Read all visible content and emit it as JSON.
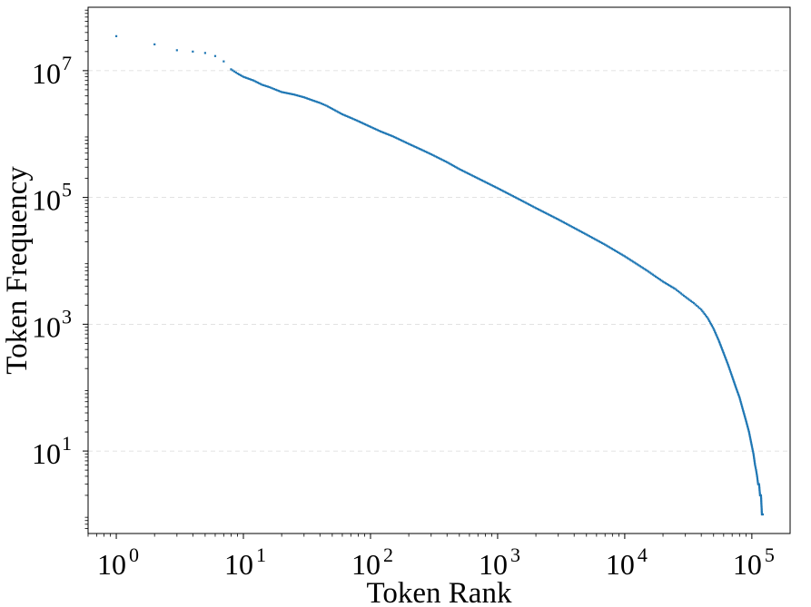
{
  "chart_data": {
    "type": "scatter",
    "xlabel": "Token Rank",
    "ylabel": "Token Frequency",
    "x_scale": "log",
    "y_scale": "log",
    "xlim": [
      0.6,
      200000
    ],
    "ylim": [
      0.5,
      100000000
    ],
    "x_ticks": [
      {
        "base": "10",
        "exp": "0",
        "value": 1
      },
      {
        "base": "10",
        "exp": "1",
        "value": 10
      },
      {
        "base": "10",
        "exp": "2",
        "value": 100
      },
      {
        "base": "10",
        "exp": "3",
        "value": 1000
      },
      {
        "base": "10",
        "exp": "4",
        "value": 10000
      },
      {
        "base": "10",
        "exp": "5",
        "value": 100000
      }
    ],
    "y_ticks": [
      {
        "base": "10",
        "exp": "1",
        "value": 10
      },
      {
        "base": "10",
        "exp": "3",
        "value": 1000
      },
      {
        "base": "10",
        "exp": "5",
        "value": 100000
      },
      {
        "base": "10",
        "exp": "7",
        "value": 10000000
      }
    ],
    "grid": {
      "x": false,
      "y": true,
      "style": "dashed"
    },
    "marker_color": "#1f77b4",
    "series": [
      {
        "x": [
          1,
          2,
          3,
          4,
          5,
          6,
          7,
          8,
          9,
          10,
          12,
          14,
          16,
          18,
          20,
          25,
          30,
          35,
          40,
          45,
          50,
          60,
          70,
          80,
          100,
          120,
          150,
          200,
          250,
          300,
          400,
          500,
          700,
          1000,
          1500,
          2000,
          3000,
          5000,
          7000,
          10000,
          15000,
          20000,
          25000,
          30000,
          35000,
          40000,
          45000,
          50000,
          55000,
          60000,
          65000,
          70000,
          75000,
          80000,
          85000,
          90000,
          95000,
          100000,
          103000,
          106000,
          108000,
          110000,
          112000,
          114000,
          116000,
          118000,
          120000,
          122000
        ],
        "y": [
          35000000,
          26000000,
          21000000,
          20000000,
          19000000,
          17000000,
          14000000,
          10500000,
          9000000,
          8000000,
          7000000,
          6000000,
          5500000,
          5000000,
          4600000,
          4200000,
          3800000,
          3400000,
          3100000,
          2800000,
          2500000,
          2050000,
          1800000,
          1600000,
          1300000,
          1100000,
          920000,
          700000,
          570000,
          480000,
          360000,
          280000,
          200000,
          140000,
          92000,
          68000,
          45000,
          26000,
          18000,
          11800,
          7000,
          4700,
          3600,
          2700,
          2150,
          1700,
          1250,
          850,
          550,
          350,
          230,
          150,
          100,
          70,
          45,
          30,
          20,
          12,
          9,
          6,
          5,
          4,
          3,
          3,
          2,
          2,
          1,
          1
        ]
      }
    ]
  }
}
